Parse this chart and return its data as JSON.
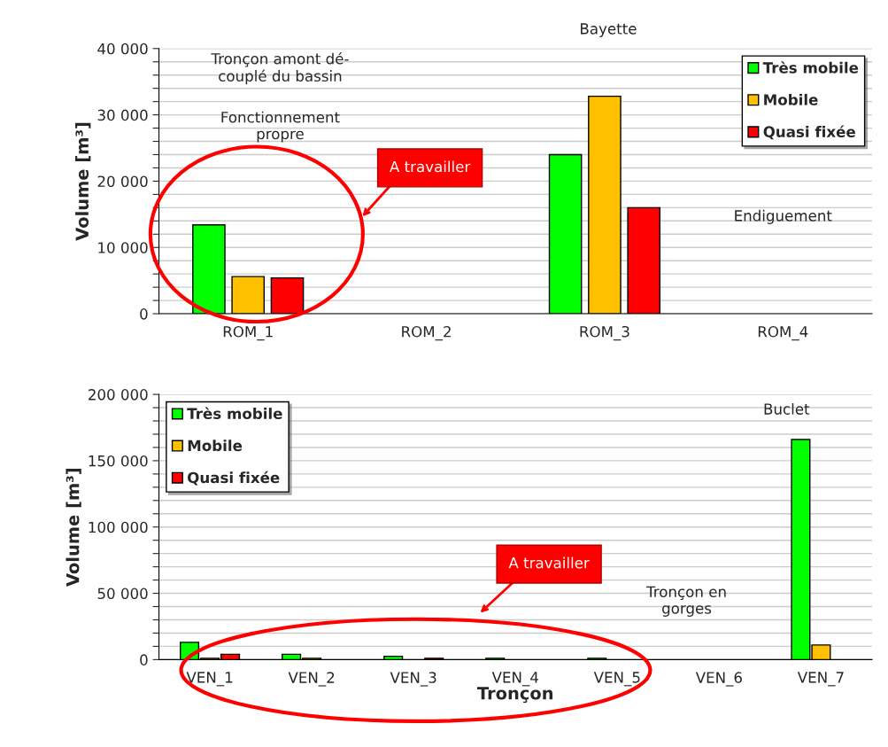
{
  "chart_data": [
    {
      "type": "bar",
      "categories": [
        "ROM_1",
        "ROM_2",
        "ROM_3",
        "ROM_4"
      ],
      "ylabel": "Volume [m³]",
      "series": [
        {
          "name": "Très mobile",
          "color": "#00ff00",
          "values": [
            13400,
            null,
            24000,
            null
          ]
        },
        {
          "name": "Mobile",
          "color": "#ffc000",
          "values": [
            5600,
            null,
            32800,
            null
          ]
        },
        {
          "name": "Quasi fixée",
          "color": "#ff0000",
          "values": [
            5400,
            null,
            16000,
            null
          ]
        }
      ],
      "ylim": [
        0,
        40000
      ],
      "yticks": [
        {
          "value": 0,
          "label": "0"
        },
        {
          "value": 2000,
          "label": null
        },
        {
          "value": 4000,
          "label": null
        },
        {
          "value": 6000,
          "label": null
        },
        {
          "value": 8000,
          "label": null
        },
        {
          "value": 10000,
          "label": "10 000"
        },
        {
          "value": 12000,
          "label": null
        },
        {
          "value": 14000,
          "label": null
        },
        {
          "value": 16000,
          "label": null
        },
        {
          "value": 18000,
          "label": null
        },
        {
          "value": 20000,
          "label": "20 000"
        },
        {
          "value": 22000,
          "label": null
        },
        {
          "value": 24000,
          "label": null
        },
        {
          "value": 26000,
          "label": null
        },
        {
          "value": 28000,
          "label": null
        },
        {
          "value": 30000,
          "label": "30 000"
        },
        {
          "value": 32000,
          "label": null
        },
        {
          "value": 34000,
          "label": null
        },
        {
          "value": 36000,
          "label": null
        },
        {
          "value": 38000,
          "label": null
        },
        {
          "value": 40000,
          "label": "40 000"
        }
      ],
      "grid": "y",
      "legend": "top right",
      "annotations": [
        "Bayette",
        "Tronçon amont dé-\ncouplé du bassin",
        "Fonctionnement\npropre",
        "A travailler",
        "Endiguement"
      ]
    },
    {
      "type": "bar",
      "categories": [
        "VEN_1",
        "VEN_2",
        "VEN_3",
        "VEN_4",
        "VEN_5",
        "VEN_6",
        "VEN_7"
      ],
      "xlabel": "Tronçon",
      "ylabel": "Volume [m³]",
      "series": [
        {
          "name": "Très mobile",
          "color": "#00ff00",
          "values": [
            13000,
            4000,
            2500,
            1000,
            1000,
            null,
            166000
          ]
        },
        {
          "name": "Mobile",
          "color": "#ffc000",
          "values": [
            1000,
            1000,
            null,
            null,
            null,
            null,
            11000
          ]
        },
        {
          "name": "Quasi fixée",
          "color": "#ff0000",
          "values": [
            4000,
            null,
            1000,
            null,
            null,
            null,
            null
          ]
        }
      ],
      "ylim": [
        0,
        200000
      ],
      "yticks": [
        {
          "value": 0,
          "label": "0"
        },
        {
          "value": 10000,
          "label": null
        },
        {
          "value": 20000,
          "label": null
        },
        {
          "value": 30000,
          "label": null
        },
        {
          "value": 40000,
          "label": null
        },
        {
          "value": 50000,
          "label": "50 000"
        },
        {
          "value": 60000,
          "label": null
        },
        {
          "value": 70000,
          "label": null
        },
        {
          "value": 80000,
          "label": null
        },
        {
          "value": 90000,
          "label": null
        },
        {
          "value": 100000,
          "label": "100 000"
        },
        {
          "value": 110000,
          "label": null
        },
        {
          "value": 120000,
          "label": null
        },
        {
          "value": 130000,
          "label": null
        },
        {
          "value": 140000,
          "label": null
        },
        {
          "value": 150000,
          "label": "150 000"
        },
        {
          "value": 160000,
          "label": null
        },
        {
          "value": 170000,
          "label": null
        },
        {
          "value": 180000,
          "label": null
        },
        {
          "value": 190000,
          "label": null
        },
        {
          "value": 200000,
          "label": "200 000"
        }
      ],
      "grid": "y",
      "legend": "top left",
      "annotations": [
        "Buclet",
        "Tronçon en\ngorges",
        "A travailler"
      ]
    }
  ]
}
